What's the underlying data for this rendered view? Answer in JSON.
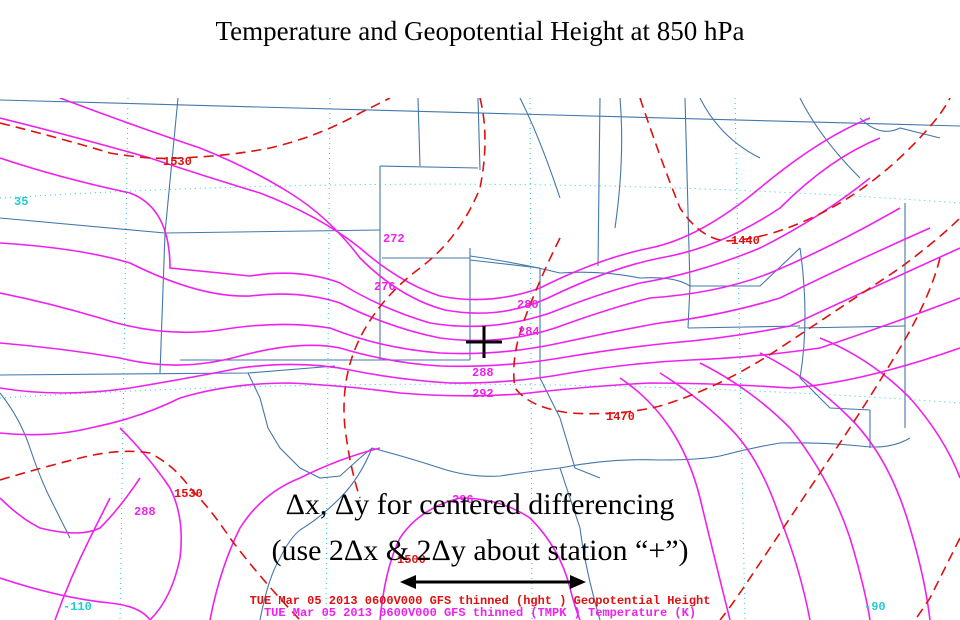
{
  "title": "Temperature and Geopotential Height at 850 hPa",
  "map": {
    "temperature_labels": [
      "272",
      "276",
      "280",
      "284",
      "288",
      "292",
      "296",
      "288"
    ],
    "height_labels": [
      "1530",
      "1440",
      "1470",
      "1530",
      "1500"
    ],
    "lat_label": "35",
    "lon_labels": [
      "-110",
      "-90"
    ],
    "footer_height": "TUE Mar 05 2013 0600V000 GFS thinned (hght ) Geopotential Height",
    "footer_temp": "TUE Mar 05 2013 0600V000 GFS thinned (TMPK ) Temperature (K)",
    "colors": {
      "temperature": "#ee22ee",
      "height": "#dd1111",
      "borders": "#4477aa",
      "latlon": "#22cccc"
    }
  },
  "annotation": {
    "line1": "Δx, Δy for centered differencing",
    "line2": "(use 2Δx & 2Δy about station “+”)"
  }
}
